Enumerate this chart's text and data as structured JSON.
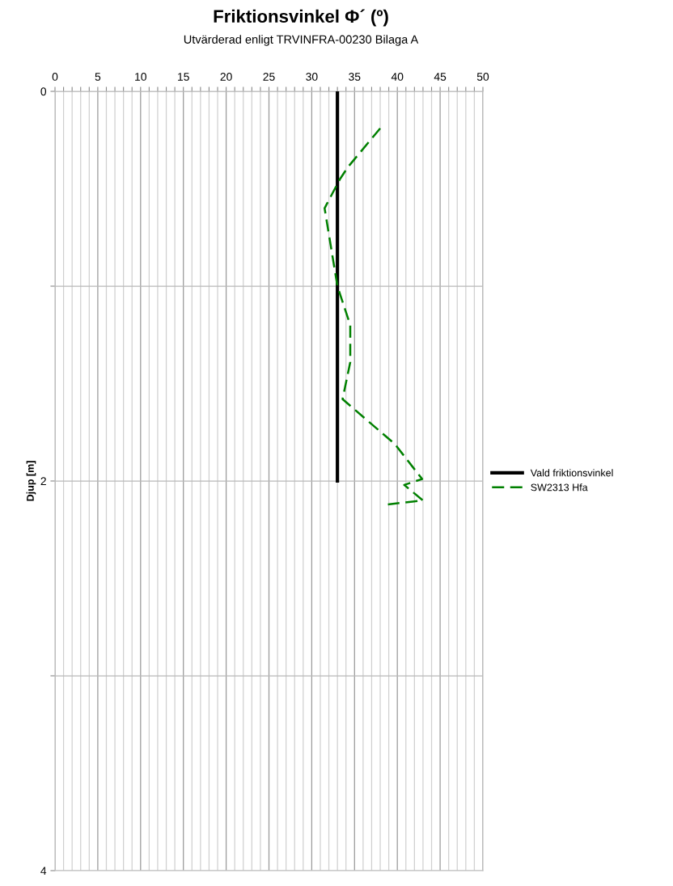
{
  "chart_data": {
    "type": "line",
    "title": "Friktionsvinkel Φ´ (º)",
    "subtitle": "Utvärderad enligt TRVINFRA-00230 Bilaga A",
    "ylabel": "Djup [m]",
    "series": [
      {
        "name": "Vald friktionsvinkel",
        "color": "#000000",
        "line_style": "solid",
        "x": [
          33,
          33
        ],
        "values": [
          0,
          2
        ]
      },
      {
        "name": "SW2313 Hfa",
        "color": "#008000",
        "line_style": "dashed",
        "x": [
          38.0,
          34.2,
          33.3,
          31.5,
          33.0,
          34.5,
          34.5,
          33.6,
          39.7,
          42.9,
          40.8,
          43.0,
          38.9
        ],
        "values": [
          0.19,
          0.39,
          0.45,
          0.6,
          1.0,
          1.2,
          1.39,
          1.58,
          1.81,
          1.99,
          2.02,
          2.1,
          2.12
        ]
      }
    ],
    "xlim": [
      0,
      50
    ],
    "ylim": [
      4,
      0
    ],
    "xticks": [
      0,
      {
        "value": 1,
        "label": null
      },
      {
        "value": 2,
        "label": null
      },
      {
        "value": 3,
        "label": null
      },
      {
        "value": 4,
        "label": null
      },
      5,
      {
        "value": 6,
        "label": null
      },
      {
        "value": 7,
        "label": null
      },
      {
        "value": 8,
        "label": null
      },
      {
        "value": 9,
        "label": null
      },
      10,
      {
        "value": 11,
        "label": null
      },
      {
        "value": 12,
        "label": null
      },
      {
        "value": 13,
        "label": null
      },
      {
        "value": 14,
        "label": null
      },
      15,
      {
        "value": 16,
        "label": null
      },
      {
        "value": 17,
        "label": null
      },
      {
        "value": 18,
        "label": null
      },
      {
        "value": 19,
        "label": null
      },
      20,
      {
        "value": 21,
        "label": null
      },
      {
        "value": 22,
        "label": null
      },
      {
        "value": 23,
        "label": null
      },
      {
        "value": 24,
        "label": null
      },
      25,
      {
        "value": 26,
        "label": null
      },
      {
        "value": 27,
        "label": null
      },
      {
        "value": 28,
        "label": null
      },
      {
        "value": 29,
        "label": null
      },
      30,
      {
        "value": 31,
        "label": null
      },
      {
        "value": 32,
        "label": null
      },
      {
        "value": 33,
        "label": null
      },
      {
        "value": 34,
        "label": null
      },
      35,
      {
        "value": 36,
        "label": null
      },
      {
        "value": 37,
        "label": null
      },
      {
        "value": 38,
        "label": null
      },
      {
        "value": 39,
        "label": null
      },
      40,
      {
        "value": 41,
        "label": null
      },
      {
        "value": 42,
        "label": null
      },
      {
        "value": 43,
        "label": null
      },
      {
        "value": 44,
        "label": null
      },
      45,
      {
        "value": 46,
        "label": null
      },
      {
        "value": 47,
        "label": null
      },
      {
        "value": 48,
        "label": null
      },
      {
        "value": 49,
        "label": null
      },
      50
    ],
    "yticks": [
      0,
      {
        "value": 1,
        "label": null
      },
      2,
      {
        "value": 3,
        "label": null
      },
      4
    ],
    "grid": true,
    "legend": "right",
    "marker": "none"
  }
}
